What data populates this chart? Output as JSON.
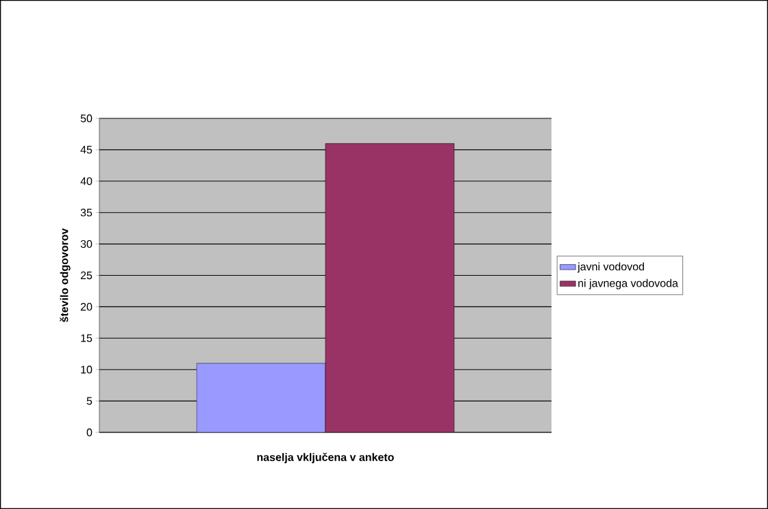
{
  "chart_data": {
    "type": "bar",
    "categories": [
      null
    ],
    "xlabel": "naselja vključena v anketo",
    "ylabel": "število odgovorov",
    "series": [
      {
        "name": "javni vodovod",
        "color": "#9999ff",
        "values": [
          11
        ]
      },
      {
        "name": "ni javnega vodovoda",
        "color": "#993366",
        "values": [
          46
        ]
      }
    ],
    "ylim": [
      0,
      50
    ],
    "yticks": [
      0,
      5,
      10,
      15,
      20,
      25,
      30,
      35,
      40,
      45,
      50
    ],
    "grid": "y",
    "legend": "right"
  }
}
